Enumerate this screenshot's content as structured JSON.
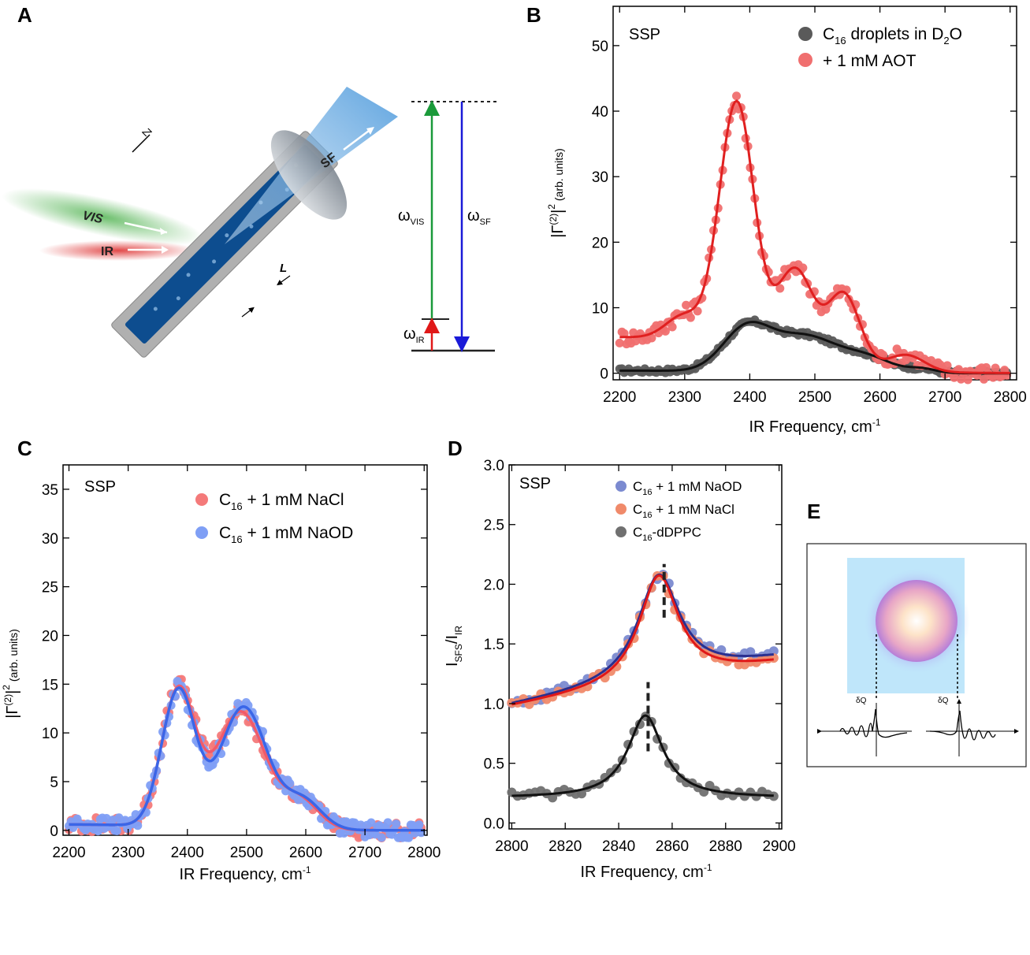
{
  "panel_labels": {
    "a": "A",
    "b": "B",
    "c": "C",
    "d": "D",
    "e": "E"
  },
  "schematic": {
    "vis_label": "VIS",
    "ir_label": "IR",
    "sf_label": "SF",
    "z_label": "Z",
    "l_label": "L",
    "omega_vis": "ω",
    "omega_vis_sub": "VIS",
    "omega_sf": "ω",
    "omega_sf_sub": "SF",
    "omega_ir": "ω",
    "omega_ir_sub": "IR",
    "delta_q_left": "δQ",
    "delta_q_right": "δQ",
    "colors": {
      "vis": "#5cb85c",
      "ir": "#e04040",
      "sf": "#3a8fd8",
      "cell": "#0d4d8f",
      "holder": "#b0b0b0"
    }
  },
  "chart_data": [
    {
      "id": "B",
      "type": "scatter",
      "mode_label": "SSP",
      "xlabel": "IR Frequency, cm",
      "xlabel_sup": "-1",
      "ylabel": "|Γ(2)|2 (arb. units)",
      "ylabel_parts": {
        "pre": "|Γ",
        "sup1": "(2)",
        "mid": "|",
        "sup2": "2",
        "post": " (arb. units)"
      },
      "xlim": [
        2190,
        2810
      ],
      "ylim": [
        -1,
        56
      ],
      "xticks": [
        2200,
        2300,
        2400,
        2500,
        2600,
        2700,
        2800
      ],
      "yticks": [
        0,
        10,
        20,
        30,
        40,
        50
      ],
      "legend": [
        {
          "pre": "C",
          "sub": "16",
          "post": " droplets in D",
          "sub2": "2",
          "post2": "O",
          "color": "#5a5a5a"
        },
        {
          "pre": "+ 1 mM AOT",
          "sub": "",
          "post": "",
          "sub2": "",
          "post2": "",
          "color": "#f06f6f"
        }
      ],
      "series": [
        {
          "name": "C16 droplets in D2O",
          "point_color": "#5a5a5a",
          "line_color": "#111111",
          "peaks": [
            [
              2395,
              6.5,
              52
            ],
            [
              2485,
              5.4,
              68
            ],
            [
              2580,
              2.2,
              55
            ],
            [
              2665,
              0.6,
              30
            ]
          ],
          "baseline": 0.4
        },
        {
          "name": "+ 1 mM AOT",
          "point_color": "#f06f6f",
          "line_color": "#e02020",
          "peaks": [
            [
              2380,
              38,
              38
            ],
            [
              2470,
              14,
              40
            ],
            [
              2545,
              11,
              35
            ],
            [
              2640,
              2.5,
              40
            ],
            [
              2300,
              4,
              40
            ]
          ],
          "baseline": 5.5
        }
      ]
    },
    {
      "id": "C",
      "type": "scatter",
      "mode_label": "SSP",
      "xlabel": "IR Frequency, cm",
      "xlabel_sup": "-1",
      "ylabel_parts": {
        "pre": "|Γ",
        "sup1": "(2)",
        "mid": "|",
        "sup2": "2",
        "post": " (arb. units)"
      },
      "xlim": [
        2190,
        2805
      ],
      "ylim": [
        -0.5,
        37.5
      ],
      "xticks": [
        2200,
        2300,
        2400,
        2500,
        2600,
        2700,
        2800
      ],
      "yticks": [
        0,
        5,
        10,
        15,
        20,
        25,
        30,
        35
      ],
      "legend": [
        {
          "pre": "C",
          "sub": "16",
          "post": " + 1 mM NaCl",
          "color": "#f47a7a"
        },
        {
          "pre": "C",
          "sub": "16",
          "post": " + 1 mM NaOD",
          "color": "#7f9ff5"
        }
      ],
      "series": [
        {
          "name": "C16 + 1 mM NaCl",
          "point_color": "#f47a7a",
          "line_color": "#f05a6a",
          "peaks": [
            [
              2385,
              14,
              40
            ],
            [
              2490,
              12,
              58
            ],
            [
              2590,
              3,
              45
            ]
          ],
          "baseline": 0.6
        },
        {
          "name": "C16 + 1 mM NaOD",
          "point_color": "#7f9ff5",
          "line_color": "#3a66e8",
          "peaks": [
            [
              2385,
              14,
              40
            ],
            [
              2495,
              12.5,
              56
            ],
            [
              2595,
              3,
              45
            ]
          ],
          "baseline": 0.6
        }
      ]
    },
    {
      "id": "D",
      "type": "scatter",
      "mode_label": "SSP",
      "xlabel": "IR Frequency, cm",
      "xlabel_sup": "-1",
      "ylabel_parts": {
        "pre": "I",
        "sub1": "SFS",
        "mid": "/I",
        "sub2": "IR"
      },
      "xlim": [
        2799,
        2901
      ],
      "ylim": [
        -0.05,
        3.0
      ],
      "xticks": [
        2800,
        2820,
        2840,
        2860,
        2880,
        2900
      ],
      "yticks": [
        0.0,
        0.5,
        1.0,
        1.5,
        2.0,
        2.5,
        3.0
      ],
      "legend": [
        {
          "pre": "C",
          "sub": "16",
          "post": " + 1 mM NaOD",
          "color": "#7b8ad0"
        },
        {
          "pre": "C",
          "sub": "16",
          "post": " + 1 mM NaCl",
          "color": "#f08a6a"
        },
        {
          "pre": "C",
          "sub": "16",
          "post": "-dDPPC",
          "color": "#707070"
        }
      ],
      "series": [
        {
          "name": "C16 + 1 mM NaOD",
          "point_color": "#7b8ad0",
          "line_color": "#2a2f8f",
          "center": 2855,
          "amp": 0.88,
          "width": 9.5,
          "base": 0.98,
          "slope": 0.004
        },
        {
          "name": "C16 + 1 mM NaCl",
          "point_color": "#f08a6a",
          "line_color": "#e01818",
          "center": 2855,
          "amp": 0.9,
          "width": 9.0,
          "base": 0.97,
          "slope": 0.0037
        },
        {
          "name": "C16-dDPPC",
          "point_color": "#707070",
          "line_color": "#111111",
          "center": 2850,
          "amp": 0.69,
          "width": 8.0,
          "base": 0.21,
          "slope": 0.0
        }
      ],
      "dashed_markers": [
        {
          "x": 2857,
          "y_from": 1.72,
          "y_to": 2.17
        },
        {
          "x": 2851,
          "y_from": 0.6,
          "y_to": 1.18
        }
      ]
    }
  ]
}
